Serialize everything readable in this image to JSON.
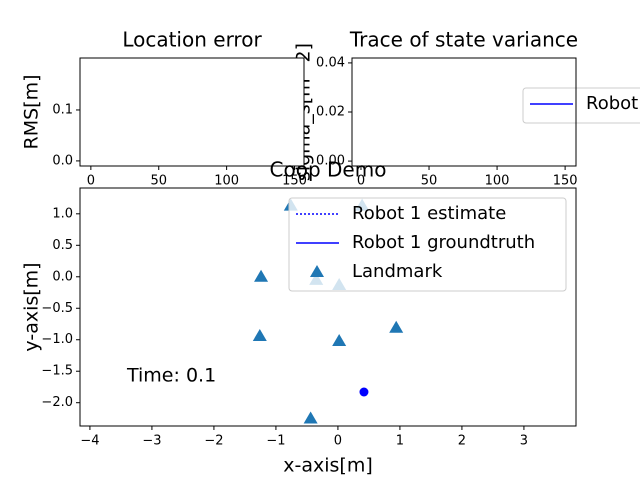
{
  "chart_data": [
    {
      "type": "line",
      "title": "Location error",
      "ylabel": "RMS[m]",
      "xlim": [
        -8,
        157
      ],
      "xticks": [
        0,
        50,
        100,
        150
      ],
      "ylim": [
        -0.01,
        0.202
      ],
      "yticks": [
        {
          "value": 0,
          "label": "0.0"
        },
        {
          "value": 0.1,
          "label": "0.1"
        }
      ]
    },
    {
      "type": "line",
      "title": "Trace of state variance",
      "ylabel": "sigma_s[m^2]",
      "xlim": [
        -6.6,
        158
      ],
      "xticks": [
        0,
        50,
        100,
        150
      ],
      "ylim": [
        -0.002,
        0.042
      ],
      "yticks": [
        {
          "value": 0,
          "label": "0.00"
        },
        {
          "value": 0.02,
          "label": "0.02"
        },
        {
          "value": 0.04,
          "label": "0.04"
        }
      ],
      "legend": "outside right",
      "series": [
        {
          "name": "Robot 1",
          "color": "#0000ff",
          "linestyle": "solid",
          "x": [],
          "y": []
        }
      ]
    },
    {
      "type": "scatter",
      "title": "Coop Demo",
      "xlabel": "x-axis[m]",
      "ylabel": "y-axis[m]",
      "annotation": "Time: 0.1",
      "xlim": [
        -4.16,
        3.84
      ],
      "xticks": [
        {
          "value": -4,
          "label": "−4"
        },
        {
          "value": -3,
          "label": "−3"
        },
        {
          "value": -2,
          "label": "−2"
        },
        {
          "value": -1,
          "label": "−1"
        },
        0,
        1,
        2,
        3
      ],
      "ylim": [
        -2.37,
        1.41
      ],
      "yticks": [
        {
          "value": 1,
          "label": "1.0"
        },
        {
          "value": 0.5,
          "label": "0.5"
        },
        {
          "value": 0,
          "label": "0.0"
        },
        {
          "value": -0.5,
          "label": "−0.5"
        },
        {
          "value": -1,
          "label": "−1.0"
        },
        {
          "value": -1.5,
          "label": "−1.5"
        },
        {
          "value": -2,
          "label": "−2.0"
        }
      ],
      "legend": "upper right",
      "series": [
        {
          "name": "Robot 1 estimate",
          "color": "#0000ff",
          "linestyle": "dotted",
          "x": [],
          "y": []
        },
        {
          "name": "Robot 1 groundtruth",
          "color": "#0000ff",
          "linestyle": "solid",
          "dot": true,
          "x": [
            0.42
          ],
          "y": [
            -1.83
          ]
        },
        {
          "name": "Landmark",
          "color": "#1f77b4",
          "linestyle": "none",
          "marker": "^",
          "x": [
            -0.76,
            0.39,
            -1.24,
            -0.35,
            0.02,
            -1.26,
            0.02,
            0.94,
            -0.44
          ],
          "y": [
            1.13,
            1.13,
            0,
            -0.05,
            -0.13,
            -0.94,
            -1.02,
            -0.81,
            -2.25
          ]
        }
      ]
    }
  ]
}
